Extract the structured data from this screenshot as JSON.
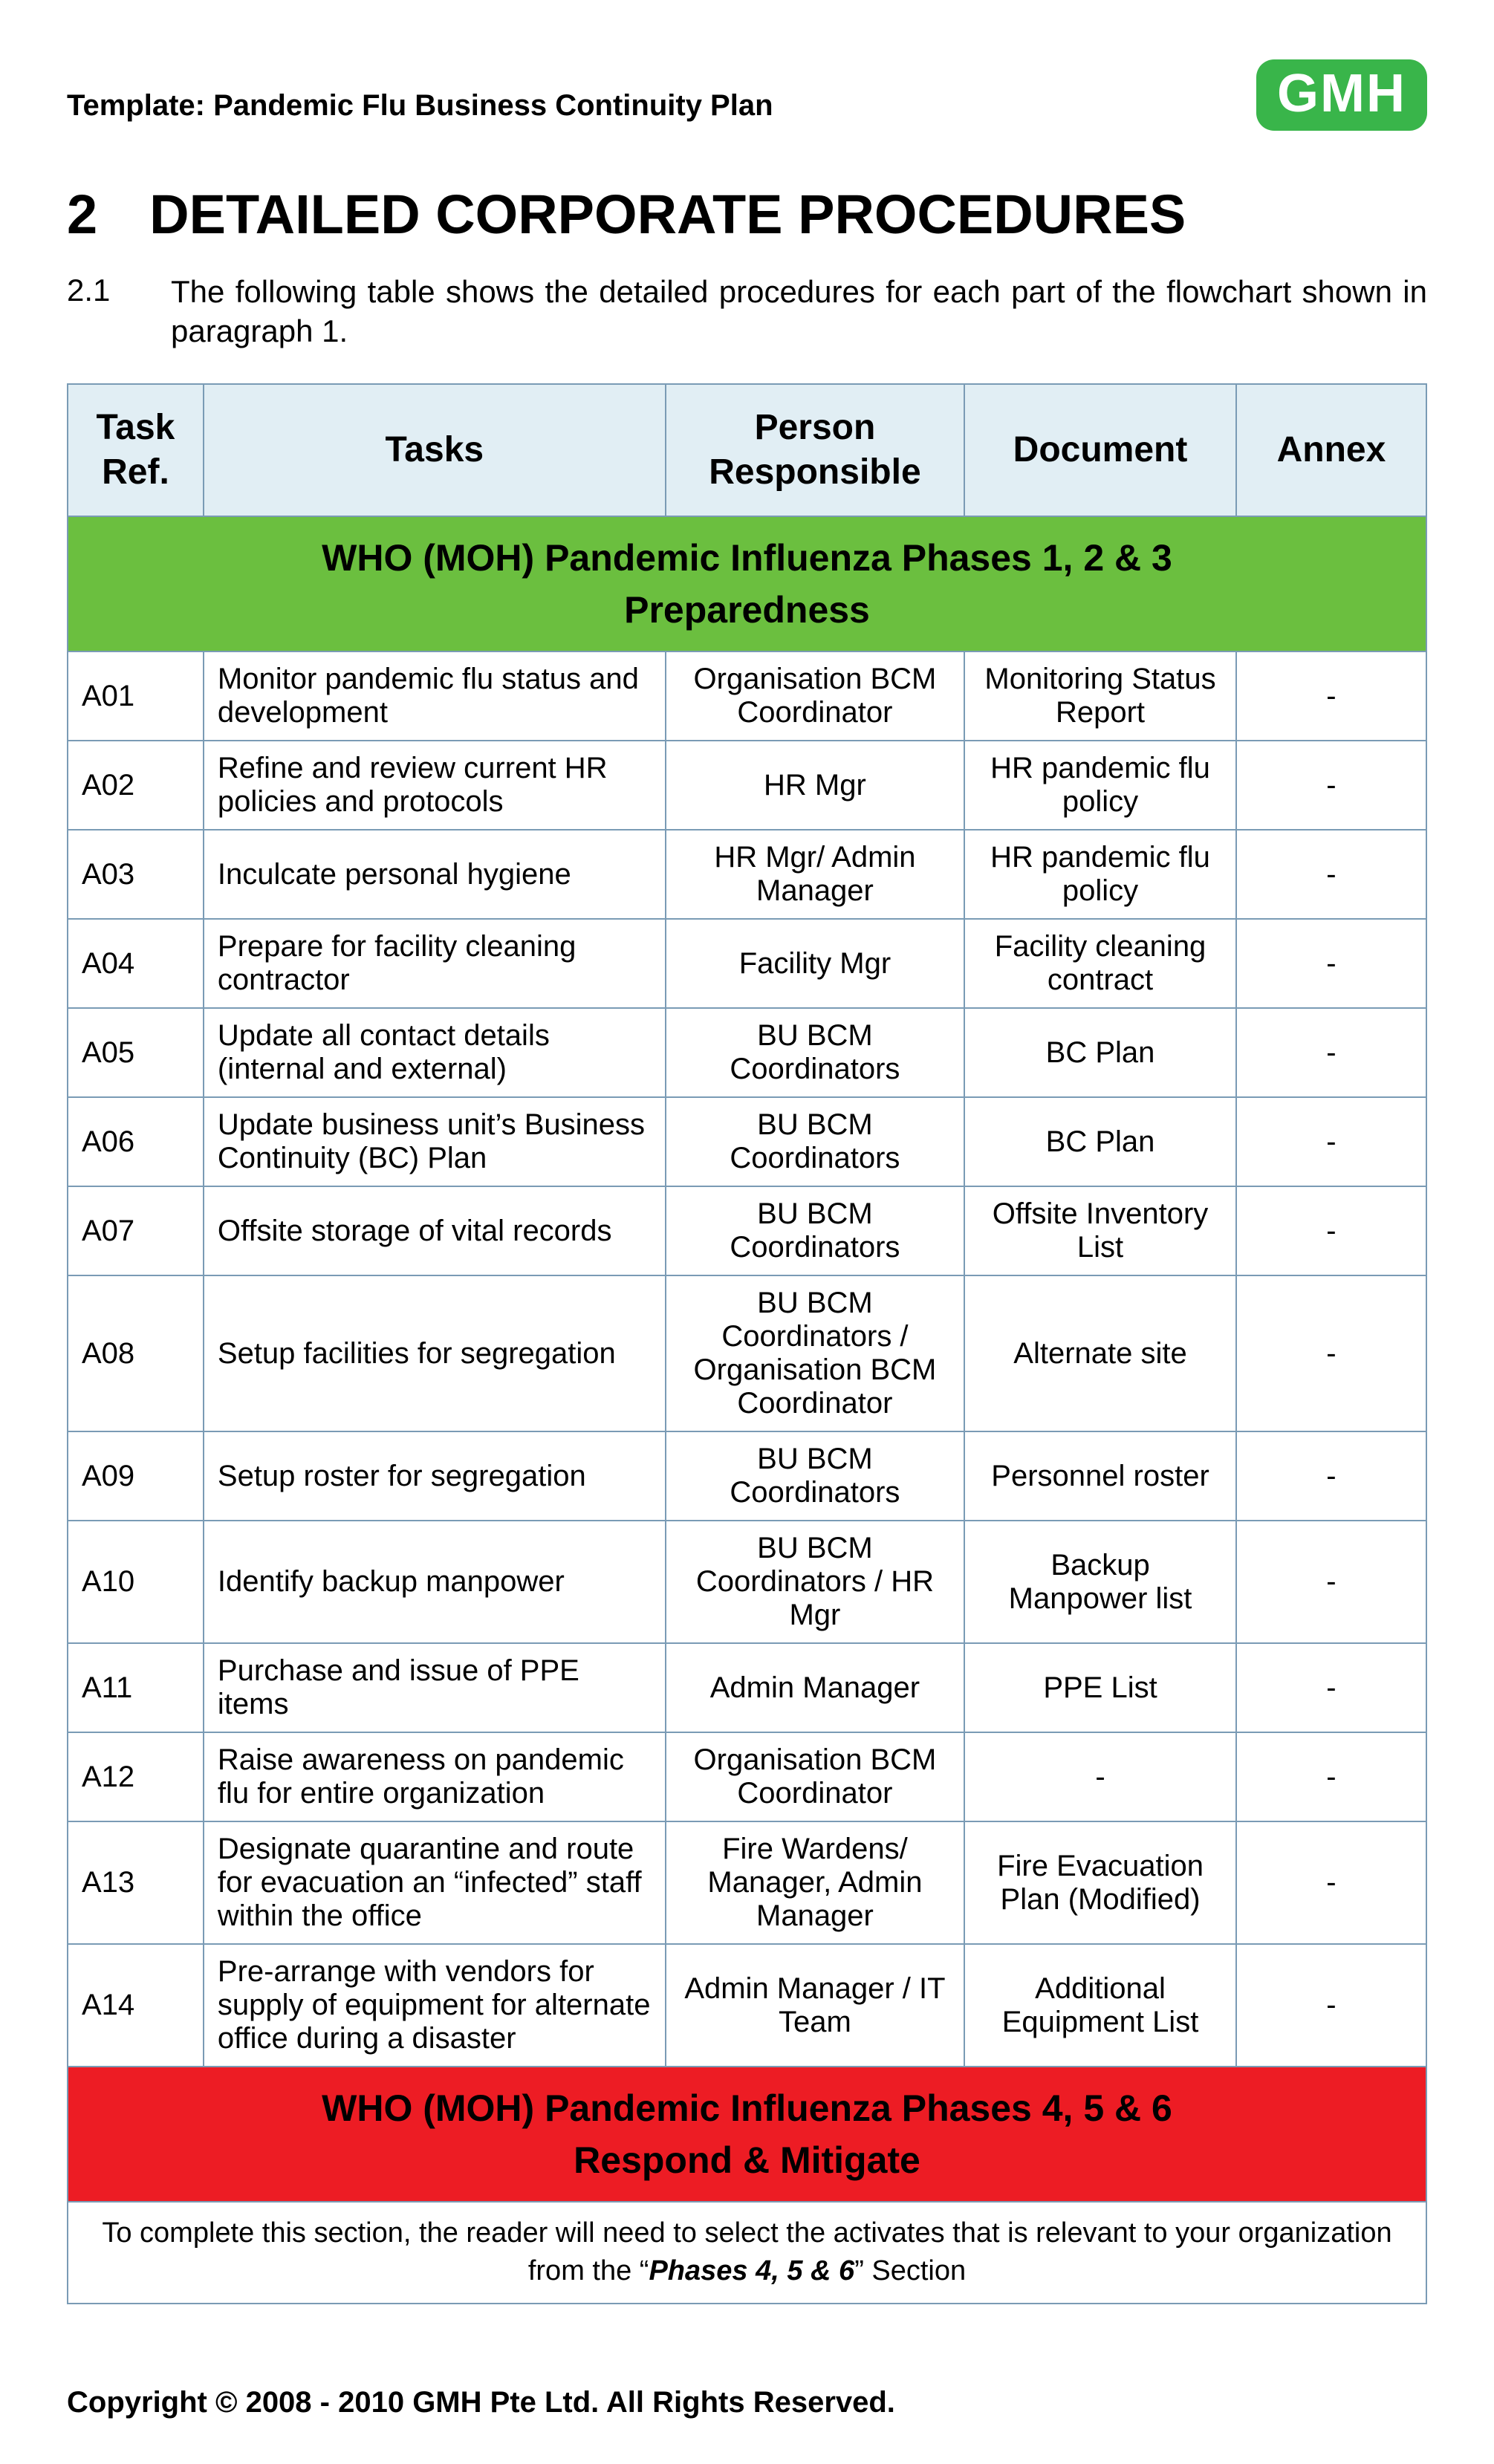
{
  "colors": {
    "brand_green": "#39b54a",
    "header_bg": "#e1eef4",
    "border": "#7a9bb5",
    "phase_green_bg": "#6bbf3f",
    "phase_red_bg": "#ed1c24",
    "text": "#000000"
  },
  "header": {
    "template_title": "Template: Pandemic Flu Business Continuity Plan",
    "logo_text": "GMH"
  },
  "section": {
    "number": "2",
    "title": "DETAILED CORPORATE PROCEDURES"
  },
  "intro": {
    "number": "2.1",
    "text": "The following table shows the detailed procedures for each part of the flowchart shown in paragraph 1."
  },
  "table": {
    "columns": {
      "ref": "Task Ref.",
      "tasks": "Tasks",
      "responsible": "Person Responsible",
      "document": "Document",
      "annex": "Annex"
    },
    "phase_green": {
      "line1": "WHO (MOH) Pandemic Influenza Phases 1, 2 & 3",
      "line2": "Preparedness"
    },
    "rows": [
      {
        "ref": "A01",
        "task": "Monitor pandemic flu status and development",
        "responsible": "Organisation BCM Coordinator",
        "document": "Monitoring Status Report",
        "annex": "-"
      },
      {
        "ref": "A02",
        "task": "Refine and review current HR policies and protocols",
        "responsible": "HR Mgr",
        "document": "HR pandemic flu policy",
        "annex": "-"
      },
      {
        "ref": "A03",
        "task": "Inculcate personal hygiene",
        "responsible": "HR Mgr/ Admin Manager",
        "document": "HR pandemic flu policy",
        "annex": "-"
      },
      {
        "ref": "A04",
        "task": "Prepare for facility cleaning contractor",
        "responsible": "Facility Mgr",
        "document": "Facility cleaning contract",
        "annex": "-"
      },
      {
        "ref": "A05",
        "task": "Update all contact details (internal and external)",
        "responsible": "BU BCM Coordinators",
        "document": "BC Plan",
        "annex": "-"
      },
      {
        "ref": "A06",
        "task": "Update business unit’s Business Continuity (BC) Plan",
        "responsible": "BU BCM Coordinators",
        "document": "BC Plan",
        "annex": "-"
      },
      {
        "ref": "A07",
        "task": "Offsite storage of vital records",
        "responsible": "BU BCM Coordinators",
        "document": "Offsite Inventory List",
        "annex": "-"
      },
      {
        "ref": "A08",
        "task": "Setup facilities for segregation",
        "responsible": "BU BCM Coordinators / Organisation BCM Coordinator",
        "document": "Alternate site",
        "annex": "-"
      },
      {
        "ref": "A09",
        "task": "Setup roster for segregation",
        "responsible": "BU BCM Coordinators",
        "document": "Personnel roster",
        "annex": "-"
      },
      {
        "ref": "A10",
        "task": "Identify backup manpower",
        "responsible": "BU BCM Coordinators / HR Mgr",
        "document": "Backup Manpower list",
        "annex": "-"
      },
      {
        "ref": "A11",
        "task": "Purchase and issue of PPE items",
        "responsible": "Admin Manager",
        "document": "PPE List",
        "annex": "-"
      },
      {
        "ref": "A12",
        "task": "Raise awareness on pandemic flu for entire organization",
        "responsible": "Organisation BCM Coordinator",
        "document": "-",
        "annex": "-"
      },
      {
        "ref": "A13",
        "task": "Designate quarantine and route for evacuation an “infected” staff within the office",
        "responsible": "Fire Wardens/ Manager, Admin Manager",
        "document": "Fire Evacuation Plan (Modified)",
        "annex": "-"
      },
      {
        "ref": "A14",
        "task": "Pre-arrange with vendors for supply of equipment for alternate office during a disaster",
        "responsible": "Admin Manager / IT Team",
        "document": "Additional Equipment List",
        "annex": "-"
      }
    ],
    "phase_red": {
      "line1": "WHO (MOH) Pandemic Influenza Phases 4, 5 & 6",
      "line2": "Respond & Mitigate"
    },
    "note": {
      "prefix": "To complete this section, the reader will need to select the activates that is relevant to your organization from the “",
      "italic": "Phases 4, 5 & 6",
      "suffix": "” Section"
    }
  },
  "footer": {
    "copyright": "Copyright © 2008 - 2010 GMH Pte Ltd.  All Rights Reserved."
  }
}
